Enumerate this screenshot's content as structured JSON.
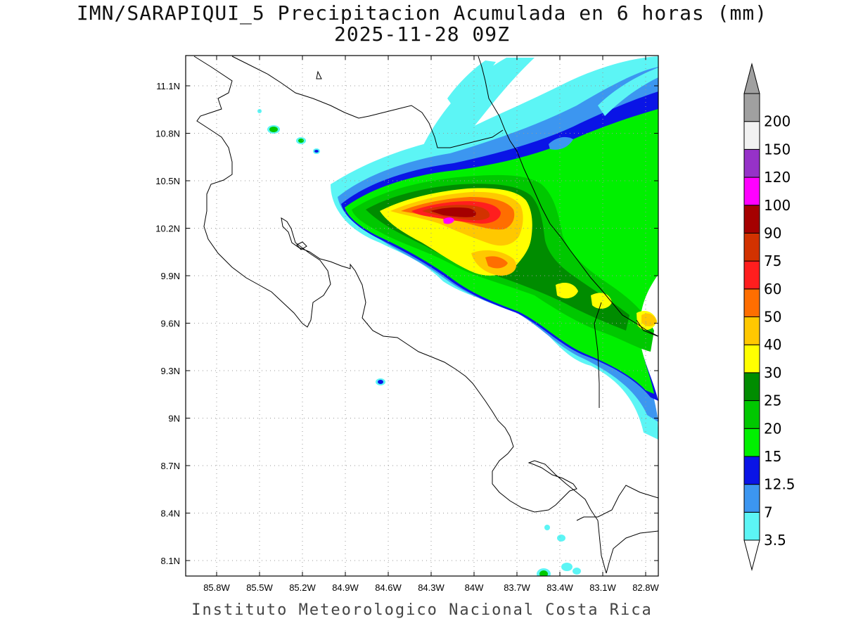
{
  "title": "IMN/SARAPIQUI_5 Precipitacion Acumulada en 6 horas (mm)",
  "subtitle": "2025-11-28 09Z",
  "footer": "Instituto Meteorologico Nacional Costa Rica",
  "map": {
    "lat_range": [
      8.0,
      11.3
    ],
    "lon_range": [
      -86.0,
      -83.0
    ],
    "lat_ticks": [
      "11.1N",
      "10.8N",
      "10.5N",
      "10.2N",
      "9.9N",
      "9.6N",
      "9.3N",
      "9N",
      "8.7N",
      "8.4N",
      "8.1N"
    ],
    "lat_tick_values": [
      11.1,
      10.8,
      10.5,
      10.2,
      9.9,
      9.6,
      9.3,
      9.0,
      8.7,
      8.4,
      8.1
    ],
    "lon_ticks": [
      "85.8W",
      "85.5W",
      "85.2W",
      "84.9W",
      "84.6W",
      "84.3W",
      "84W",
      "83.7W",
      "83.4W",
      "83.1W",
      "82.8W"
    ],
    "lon_tick_values": [
      -85.8,
      -85.5,
      -85.2,
      -84.9,
      -84.6,
      -84.3,
      -84.0,
      -83.7,
      -83.4,
      -83.1,
      -82.8
    ],
    "grid": "dotted"
  },
  "colorbar": {
    "labels": [
      "3.5",
      "7",
      "12.5",
      "15",
      "20",
      "25",
      "30",
      "40",
      "50",
      "60",
      "75",
      "90",
      "100",
      "120",
      "150",
      "200"
    ],
    "colors": [
      "#5cf5f5",
      "#3c96f0",
      "#0a14e6",
      "#00f000",
      "#00c800",
      "#008c00",
      "#ffff00",
      "#ffc800",
      "#ff6e00",
      "#ff1e1e",
      "#d23200",
      "#a50000",
      "#ff00ff",
      "#9632c8",
      "#f2f2f2",
      "#a0a0a0"
    ],
    "end_upper_color": "#a0a0a0",
    "end_lower_color": "#ffffff"
  }
}
